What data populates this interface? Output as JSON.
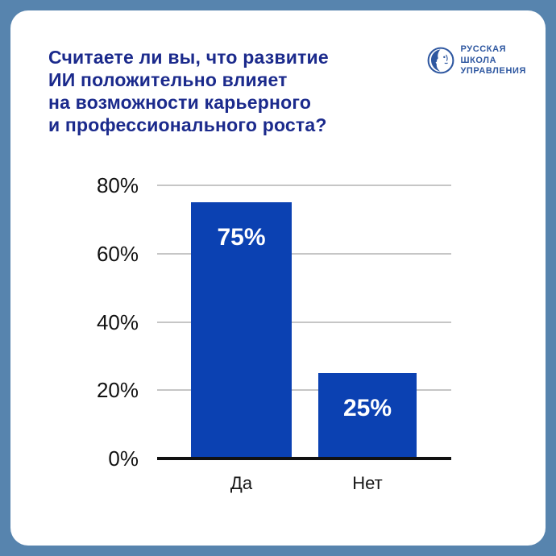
{
  "card": {
    "title": "Считаете ли вы, что развитие\nИИ положительно влияет\nна возможности карьерного\nи профессионального роста?"
  },
  "logo": {
    "name": "РУССКАЯ\nШКОЛА\nУПРАВЛЕНИЯ",
    "icon": "profile-face-in-circle"
  },
  "colors": {
    "frame": "#5784AE",
    "card_bg": "#FFFFFF",
    "title": "#1B2A8C",
    "bar": "#0B41B2",
    "bar_label": "#FFFFFF",
    "gridline": "#C6C6C6",
    "axis": "#111111",
    "logo": "#2E57A0"
  },
  "chart_data": {
    "type": "bar",
    "title": "Считаете ли вы, что развитие ИИ положительно влияет на возможности карьерного и профессионального роста?",
    "categories": [
      "Да",
      "Нет"
    ],
    "values": [
      75,
      25
    ],
    "value_labels": [
      "75%",
      "25%"
    ],
    "yticks": [
      0,
      20,
      40,
      60,
      80
    ],
    "ytick_labels": [
      "0%",
      "20%",
      "40%",
      "60%",
      "80%"
    ],
    "ylim": [
      0,
      80
    ],
    "grid": true,
    "legend": "none",
    "xlabel": "",
    "ylabel": ""
  }
}
